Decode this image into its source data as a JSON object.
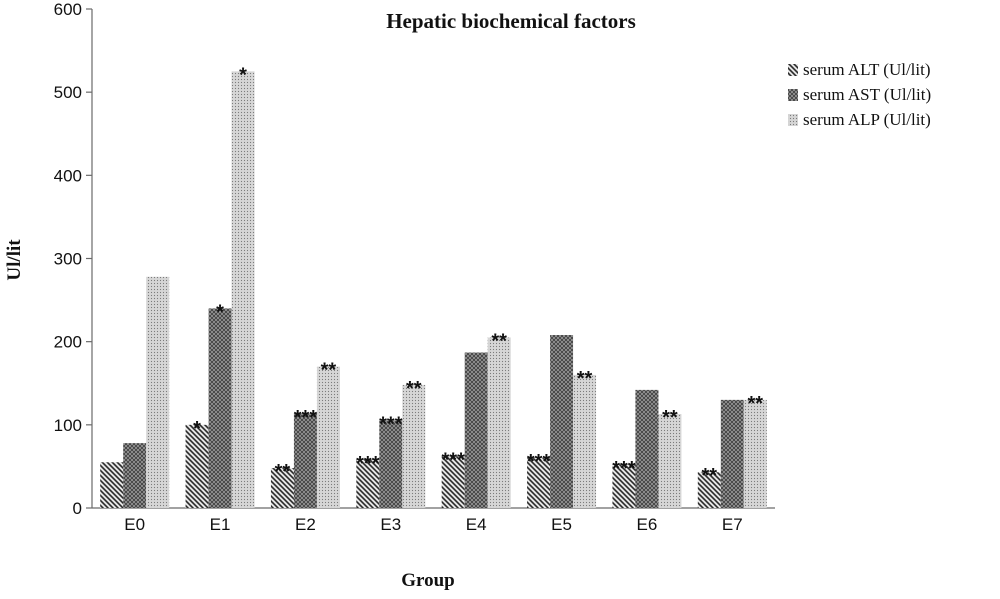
{
  "chart_data": {
    "type": "bar",
    "title": "Hepatic biochemical factors",
    "xlabel": "Group",
    "ylabel": "Ul/lit",
    "ylim": [
      0,
      600
    ],
    "yticks": [
      0,
      100,
      200,
      300,
      400,
      500,
      600
    ],
    "grid": false,
    "legend_position": "right",
    "categories": [
      "E0",
      "E1",
      "E2",
      "E3",
      "E4",
      "E5",
      "E6",
      "E7"
    ],
    "series": [
      {
        "name": "serum ALT (Ul/lit)",
        "pattern": "diagonal-stripes",
        "values": [
          55,
          100,
          48,
          58,
          62,
          60,
          52,
          43
        ],
        "annotations": [
          "",
          "*",
          "**",
          "***",
          "***",
          "***",
          "***",
          "**"
        ]
      },
      {
        "name": "serum AST (Ul/lit)",
        "pattern": "crosshatch",
        "values": [
          78,
          240,
          113,
          105,
          187,
          208,
          142,
          130
        ],
        "annotations": [
          "",
          "*",
          "***",
          "***",
          "",
          "",
          "",
          ""
        ]
      },
      {
        "name": "serum ALP (Ul/lit)",
        "pattern": "fine-dots",
        "values": [
          278,
          525,
          170,
          148,
          205,
          160,
          113,
          130
        ],
        "annotations": [
          "",
          "*",
          "**",
          "**",
          "**",
          "**",
          "**",
          "**"
        ]
      }
    ],
    "colors": {
      "ink": "#222222",
      "light": "#c8c8c8",
      "background": "#ffffff"
    }
  }
}
